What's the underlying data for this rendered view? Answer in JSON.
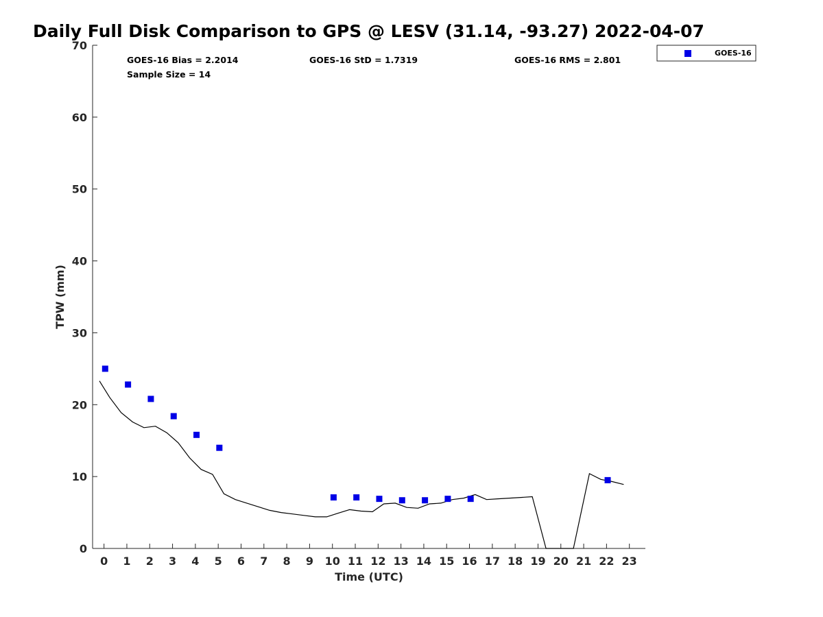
{
  "chart_data": {
    "type": "scatter",
    "title": "Daily Full Disk Comparison to GPS @ LESV (31.14, -93.27) 2022-04-07",
    "xlabel": "Time (UTC)",
    "ylabel": "TPW (mm)",
    "xlim": [
      -0.5,
      23.7
    ],
    "ylim": [
      0,
      70
    ],
    "xticks": [
      0,
      1,
      2,
      3,
      4,
      5,
      6,
      7,
      8,
      9,
      10,
      11,
      12,
      13,
      14,
      15,
      16,
      17,
      18,
      19,
      20,
      21,
      22,
      23
    ],
    "yticks": [
      0,
      10,
      20,
      30,
      40,
      50,
      60,
      70
    ],
    "grid": false,
    "legend_position": "top-right (outside plot)",
    "stats": {
      "bias": "GOES-16 Bias = 2.2014",
      "std": "GOES-16 StD = 1.7319",
      "rms": "GOES-16 RMS = 2.801",
      "sample": "Sample Size = 14"
    },
    "series": [
      {
        "name": "GOES-16",
        "marker": "square",
        "color": "#0000e6",
        "x": [
          0.05,
          1.05,
          2.05,
          3.05,
          4.05,
          5.05,
          10.05,
          11.05,
          12.05,
          13.05,
          14.05,
          15.05,
          16.05,
          22.05
        ],
        "y": [
          25.0,
          22.8,
          20.8,
          18.4,
          15.8,
          14.0,
          7.1,
          7.1,
          6.9,
          6.7,
          6.7,
          6.9,
          6.9,
          9.5
        ]
      },
      {
        "marker": "line",
        "color": "#000000",
        "x": [
          -0.2,
          0.25,
          0.75,
          1.25,
          1.75,
          2.25,
          2.75,
          3.25,
          3.75,
          4.25,
          4.75,
          5.25,
          5.75,
          6.25,
          6.75,
          7.25,
          7.75,
          8.25,
          8.75,
          9.25,
          9.75,
          10.25,
          10.75,
          11.25,
          11.75,
          12.25,
          12.75,
          13.25,
          13.75,
          14.25,
          14.75,
          15.25,
          15.75,
          16.25,
          16.75,
          17.25,
          17.75,
          18.25,
          18.75,
          19.35,
          20.0,
          20.55,
          21.25,
          21.75,
          22.25,
          22.75
        ],
        "y": [
          23.3,
          21.0,
          18.9,
          17.6,
          16.8,
          17.0,
          16.1,
          14.7,
          12.6,
          11.0,
          10.3,
          7.6,
          6.8,
          6.3,
          5.8,
          5.3,
          5.0,
          4.8,
          4.6,
          4.4,
          4.4,
          4.9,
          5.4,
          5.2,
          5.1,
          6.2,
          6.3,
          5.7,
          5.6,
          6.2,
          6.3,
          6.8,
          7.0,
          7.5,
          6.8,
          6.9,
          7.0,
          7.1,
          7.2,
          0.0,
          0.0,
          0.0,
          10.4,
          9.6,
          9.3,
          8.9
        ]
      }
    ]
  }
}
